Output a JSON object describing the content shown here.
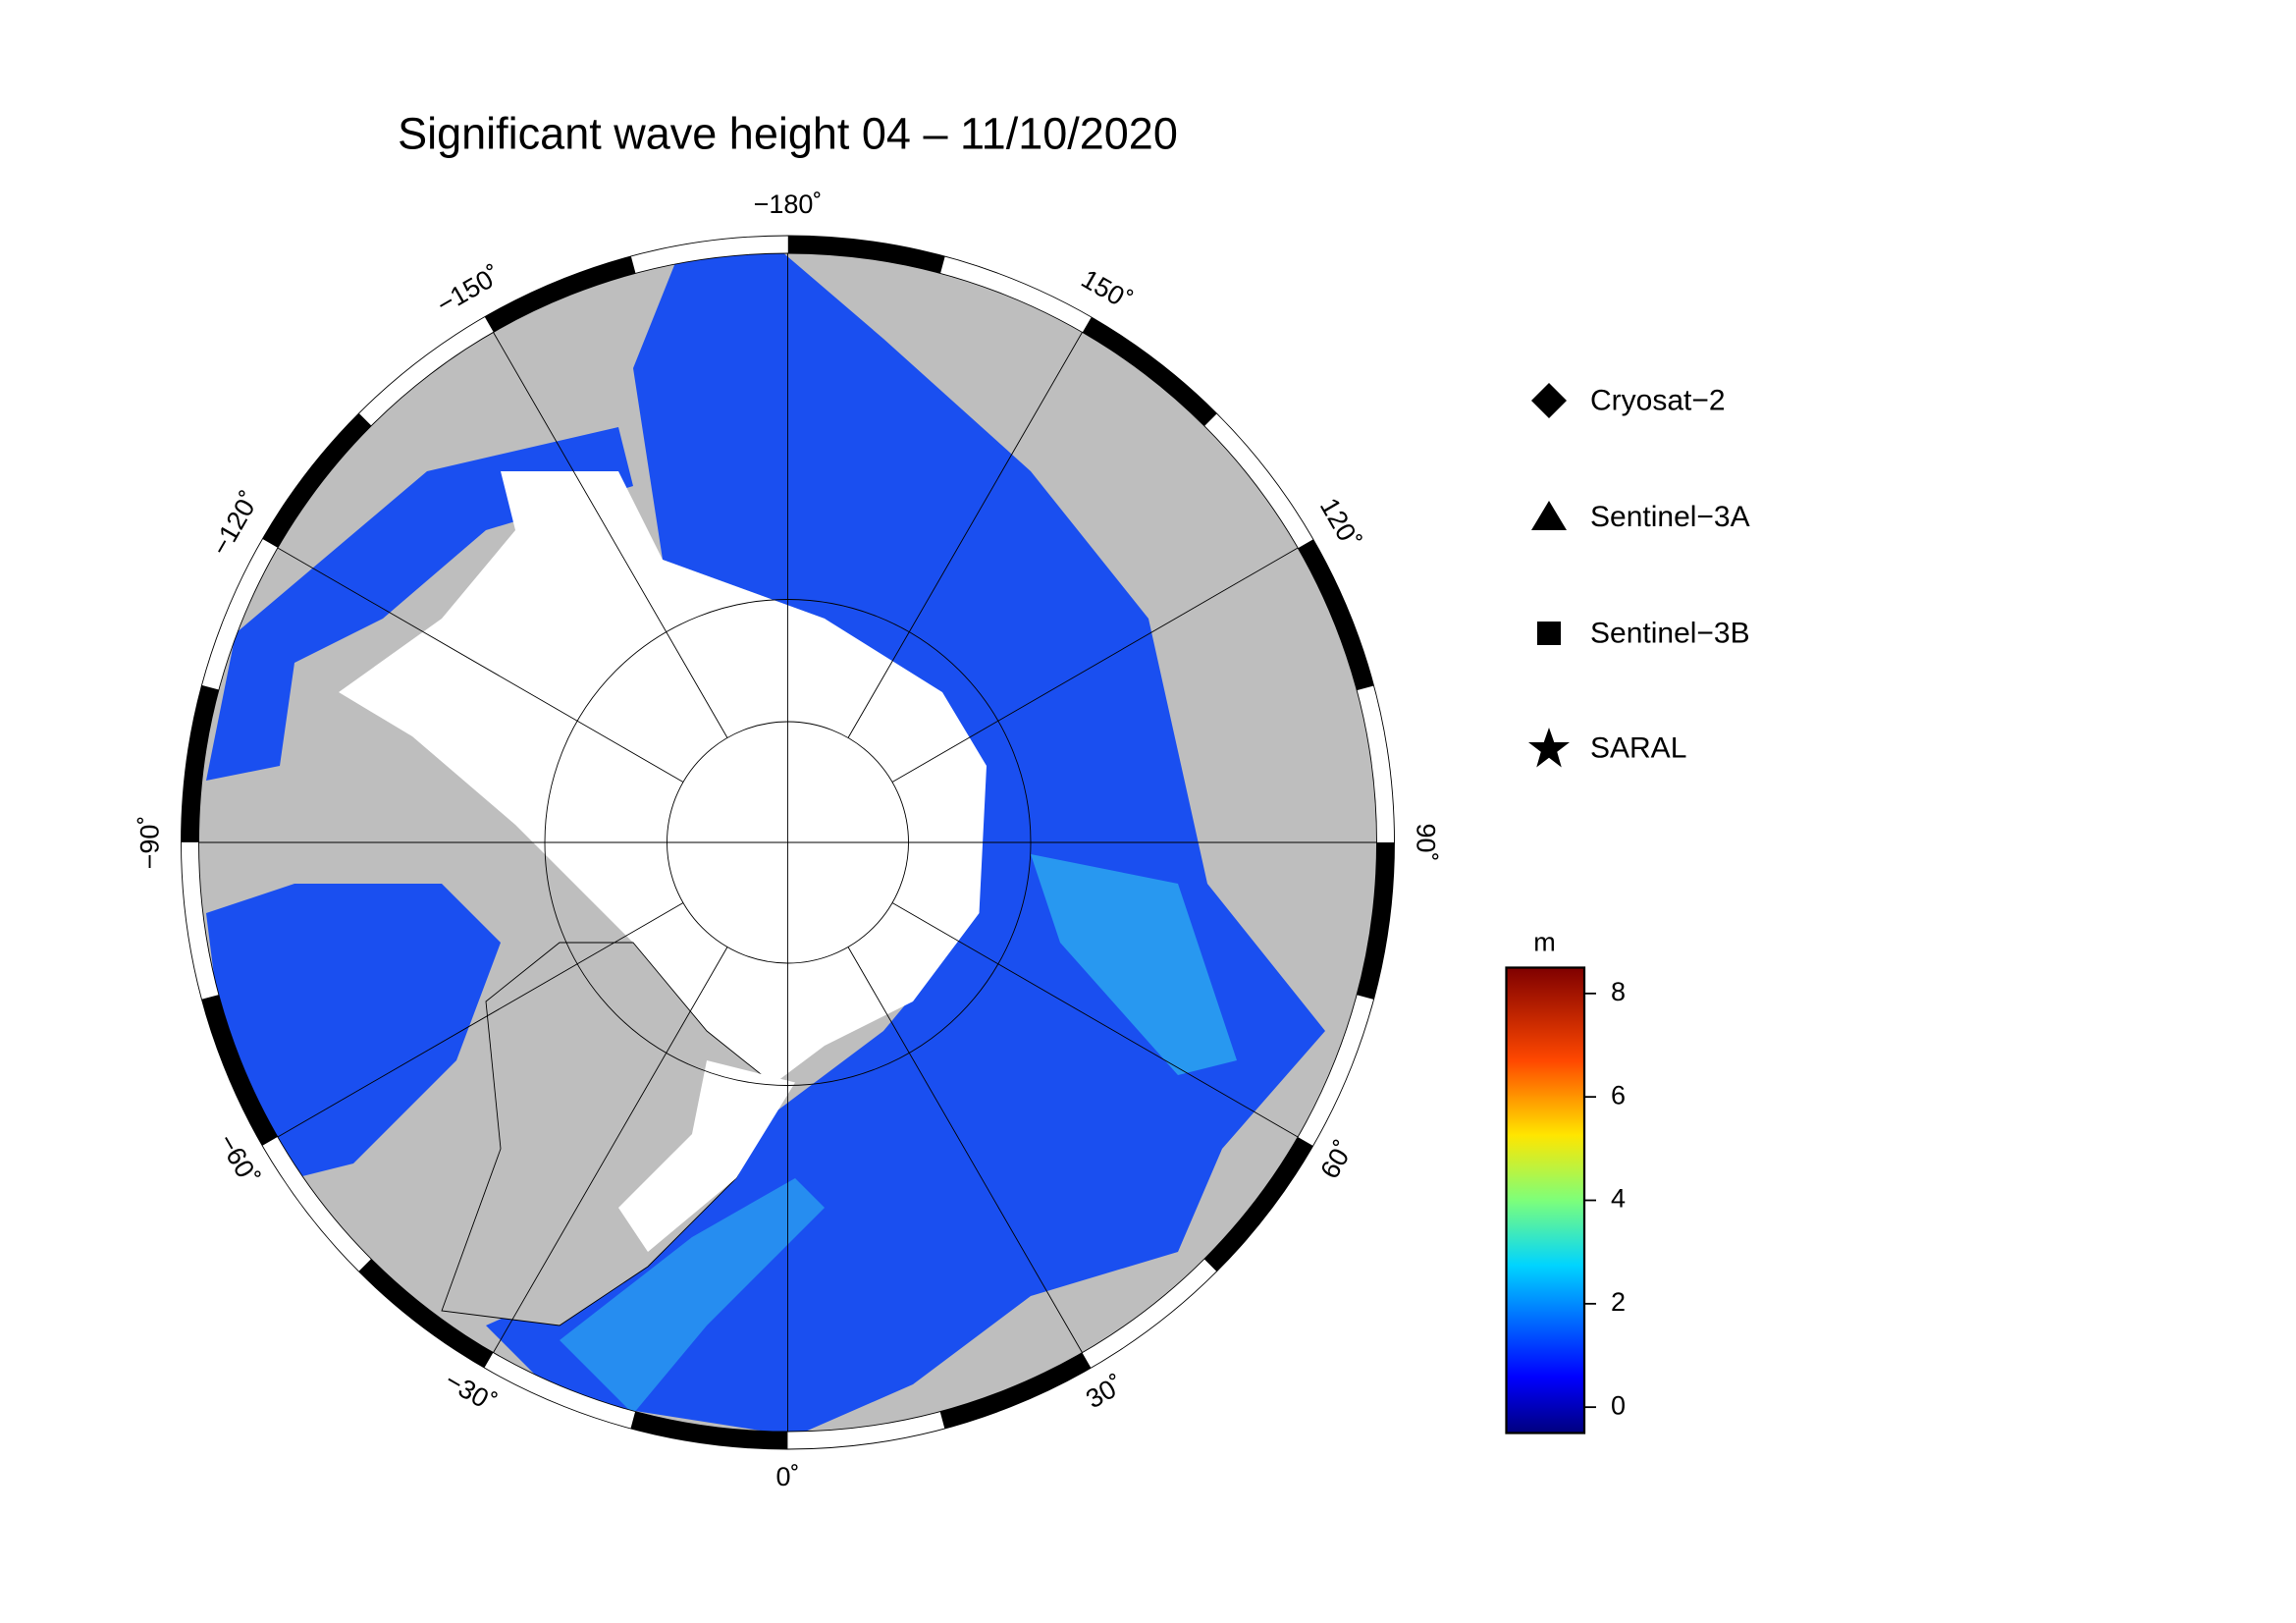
{
  "title": "Significant wave height 04 – 11/10/2020",
  "map": {
    "longitude_labels": [
      {
        "value": -180,
        "label": "−180˚"
      },
      {
        "value": 150,
        "label": "150˚"
      },
      {
        "value": 120,
        "label": "120˚"
      },
      {
        "value": 90,
        "label": "90˚"
      },
      {
        "value": 60,
        "label": "60˚"
      },
      {
        "value": 30,
        "label": "30˚"
      },
      {
        "value": 0,
        "label": "0˚"
      },
      {
        "value": -30,
        "label": "−30˚"
      },
      {
        "value": -60,
        "label": "−60˚"
      },
      {
        "value": -90,
        "label": "−90˚"
      },
      {
        "value": -120,
        "label": "−120˚"
      },
      {
        "value": -150,
        "label": "−150˚"
      }
    ]
  },
  "legend": [
    "Cryosat−2",
    "Sentinel−3A",
    "Sentinel−3B",
    "SARAL"
  ],
  "colorbar": {
    "label": "m",
    "lim": [
      -0.5,
      8.5
    ],
    "ticks": [
      0,
      2,
      4,
      6,
      8
    ]
  }
}
